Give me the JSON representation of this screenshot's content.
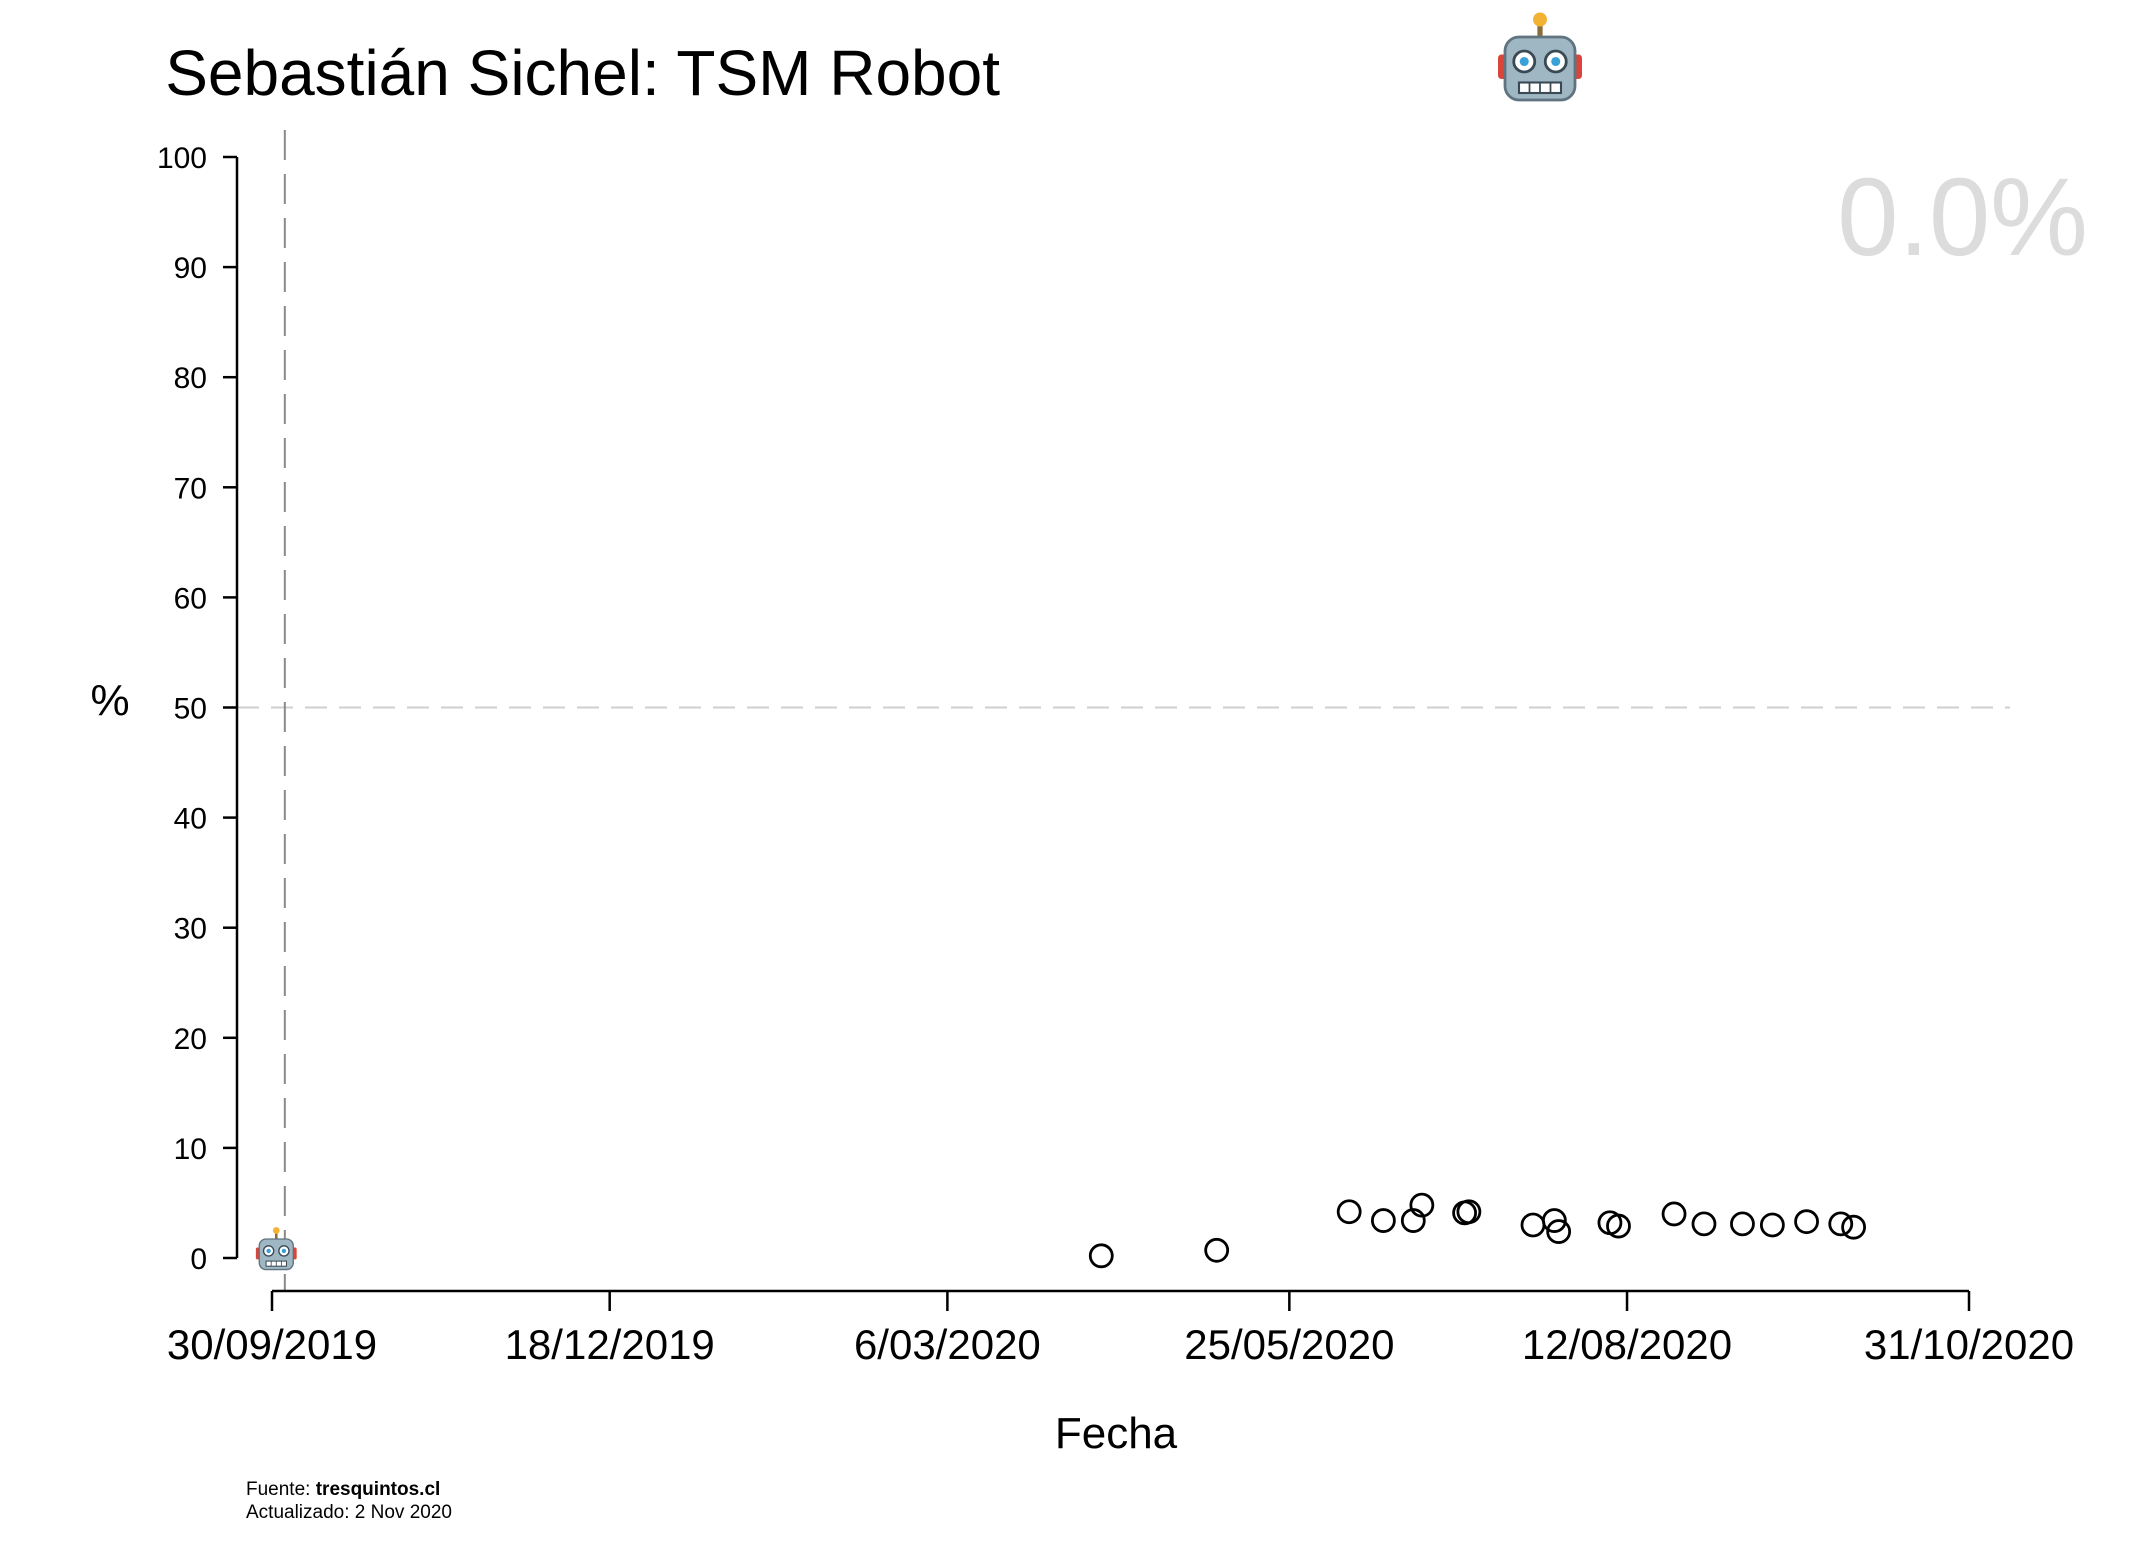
{
  "chart_data": {
    "type": "scatter",
    "title": "Sebastián Sichel: TSM Robot",
    "title_icon": "robot-face-icon",
    "xlabel": "Fecha",
    "ylabel": "%",
    "ylim": [
      0,
      100
    ],
    "yticks": [
      0,
      10,
      20,
      30,
      40,
      50,
      60,
      70,
      80,
      90,
      100
    ],
    "xlim": [
      "2019-09-30",
      "2020-10-31"
    ],
    "xtick_labels": [
      "30/09/2019",
      "18/12/2019",
      "6/03/2020",
      "25/05/2020",
      "12/08/2020",
      "31/10/2020"
    ],
    "xtick_dates": [
      "2019-09-30",
      "2019-12-18",
      "2020-03-06",
      "2020-05-25",
      "2020-08-12",
      "2020-10-31"
    ],
    "reference_lines": {
      "horizontal_y": 50,
      "vertical_x": "2019-10-03"
    },
    "grid": false,
    "marker": "open-circle",
    "latest_value_label": "0.0%",
    "latest_marker": {
      "x": "2019-10-01",
      "y": 0,
      "icon": "robot-face-icon"
    },
    "points": [
      {
        "x": "2020-04-11",
        "y": 0.2
      },
      {
        "x": "2020-05-08",
        "y": 0.7
      },
      {
        "x": "2020-06-08",
        "y": 4.2
      },
      {
        "x": "2020-06-16",
        "y": 3.4
      },
      {
        "x": "2020-06-23",
        "y": 3.4
      },
      {
        "x": "2020-06-25",
        "y": 4.8
      },
      {
        "x": "2020-07-05",
        "y": 4.1
      },
      {
        "x": "2020-07-06",
        "y": 4.2
      },
      {
        "x": "2020-07-21",
        "y": 3.0
      },
      {
        "x": "2020-07-26",
        "y": 3.4
      },
      {
        "x": "2020-07-27",
        "y": 2.4
      },
      {
        "x": "2020-08-08",
        "y": 3.2
      },
      {
        "x": "2020-08-10",
        "y": 2.9
      },
      {
        "x": "2020-08-23",
        "y": 4.0
      },
      {
        "x": "2020-08-30",
        "y": 3.1
      },
      {
        "x": "2020-09-08",
        "y": 3.1
      },
      {
        "x": "2020-09-15",
        "y": 3.0
      },
      {
        "x": "2020-09-23",
        "y": 3.3
      },
      {
        "x": "2020-10-01",
        "y": 3.1
      },
      {
        "x": "2020-10-04",
        "y": 2.8
      }
    ]
  },
  "footer": {
    "source_prefix": "Fuente: ",
    "source_name": "tresquintos.cl",
    "updated": "Actualizado: 2 Nov 2020"
  }
}
